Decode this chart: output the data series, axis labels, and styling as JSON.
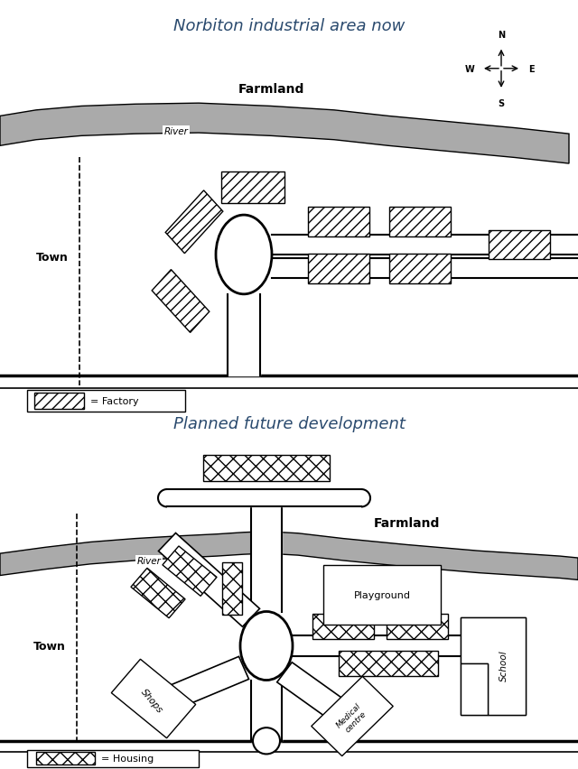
{
  "title1": "Norbiton industrial area now",
  "title2": "Planned future development",
  "bg_color": "#ffffff",
  "river_color": "#aaaaaa",
  "legend1_label": "= Factory",
  "legend2_label": "= Housing"
}
